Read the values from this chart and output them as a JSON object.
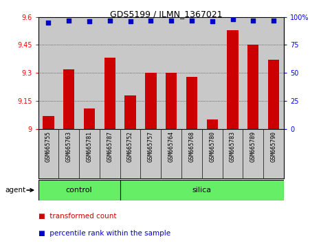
{
  "title": "GDS5199 / ILMN_1367021",
  "samples": [
    "GSM665755",
    "GSM665763",
    "GSM665781",
    "GSM665787",
    "GSM665752",
    "GSM665757",
    "GSM665764",
    "GSM665768",
    "GSM665780",
    "GSM665783",
    "GSM665789",
    "GSM665790"
  ],
  "groups": [
    "control",
    "silica"
  ],
  "group_sizes": [
    4,
    8
  ],
  "transformed_counts": [
    9.07,
    9.32,
    9.11,
    9.38,
    9.18,
    9.3,
    9.3,
    9.28,
    9.05,
    9.53,
    9.45,
    9.37
  ],
  "percentile_ranks": [
    95,
    97,
    96,
    97,
    96,
    97,
    97,
    97,
    96,
    98,
    97,
    97
  ],
  "ylim_left": [
    9.0,
    9.6
  ],
  "ylim_right": [
    0,
    100
  ],
  "yticks_left": [
    9.0,
    9.15,
    9.3,
    9.45,
    9.6
  ],
  "yticks_right": [
    0,
    25,
    50,
    75,
    100
  ],
  "ytick_labels_left": [
    "9",
    "9.15",
    "9.3",
    "9.45",
    "9.6"
  ],
  "ytick_labels_right": [
    "0",
    "25",
    "50",
    "75",
    "100%"
  ],
  "bar_color": "#cc0000",
  "dot_color": "#0000cc",
  "group_color": "#66ee66",
  "bg_color": "#c8c8c8",
  "grid_color": "#444444",
  "agent_label": "agent",
  "legend_bar_label": "transformed count",
  "legend_dot_label": "percentile rank within the sample"
}
